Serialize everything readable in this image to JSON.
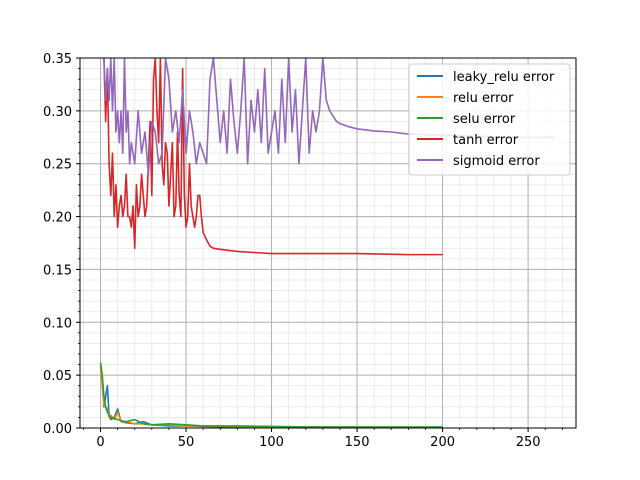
{
  "chart_data": {
    "type": "line",
    "title": "",
    "xlabel": "",
    "ylabel": "",
    "xlim": [
      -12,
      278
    ],
    "ylim": [
      0,
      0.35
    ],
    "xticks": [
      0,
      50,
      100,
      150,
      200,
      250
    ],
    "yticks": [
      0.0,
      0.05,
      0.1,
      0.15,
      0.2,
      0.25,
      0.3,
      0.35
    ],
    "xtick_labels": [
      "0",
      "50",
      "100",
      "150",
      "200",
      "250"
    ],
    "ytick_labels": [
      "0.00",
      "0.05",
      "0.10",
      "0.15",
      "0.20",
      "0.25",
      "0.30",
      "0.35"
    ],
    "grid": "major and minor",
    "legend_position": "top-right",
    "legend_entries": [
      "leaky_relu error",
      "relu error",
      "selu error",
      "tanh error",
      "sigmoid error"
    ],
    "series": [
      {
        "name": "leaky_relu error",
        "color": "#1f77b4",
        "x": [
          0,
          1,
          2,
          3,
          4,
          5,
          6,
          8,
          10,
          12,
          15,
          20,
          25,
          30,
          40,
          50,
          60,
          80,
          100,
          120,
          150,
          180,
          200
        ],
        "y": [
          0.058,
          0.045,
          0.02,
          0.03,
          0.04,
          0.012,
          0.008,
          0.01,
          0.018,
          0.006,
          0.005,
          0.004,
          0.006,
          0.003,
          0.002,
          0.002,
          0.0015,
          0.001,
          0.001,
          0.0008,
          0.0006,
          0.0005,
          0.0004
        ]
      },
      {
        "name": "relu error",
        "color": "#ff7f0e",
        "x": [
          0,
          1,
          2,
          3,
          4,
          5,
          6,
          8,
          10,
          12,
          15,
          20,
          25,
          30,
          40,
          50,
          60,
          80,
          100,
          120,
          150,
          180,
          200
        ],
        "y": [
          0.06,
          0.04,
          0.022,
          0.02,
          0.018,
          0.01,
          0.012,
          0.008,
          0.015,
          0.006,
          0.006,
          0.004,
          0.004,
          0.003,
          0.003,
          0.002,
          0.002,
          0.0015,
          0.001,
          0.001,
          0.0008,
          0.0006,
          0.0005
        ]
      },
      {
        "name": "selu error",
        "color": "#2ca02c",
        "x": [
          0,
          1,
          2,
          3,
          4,
          5,
          6,
          8,
          10,
          12,
          15,
          20,
          25,
          30,
          40,
          50,
          60,
          80,
          100,
          120,
          150,
          180,
          200
        ],
        "y": [
          0.062,
          0.05,
          0.03,
          0.02,
          0.015,
          0.012,
          0.01,
          0.009,
          0.008,
          0.007,
          0.006,
          0.008,
          0.004,
          0.003,
          0.004,
          0.003,
          0.002,
          0.002,
          0.0015,
          0.001,
          0.001,
          0.001,
          0.001
        ]
      },
      {
        "name": "tanh error",
        "color": "#d62728",
        "x": [
          2,
          3,
          4,
          5,
          6,
          7,
          8,
          9,
          10,
          11,
          12,
          13,
          14,
          15,
          16,
          17,
          18,
          19,
          20,
          21,
          22,
          23,
          24,
          25,
          26,
          27,
          28,
          29,
          30,
          31,
          32,
          33,
          34,
          35,
          36,
          37,
          38,
          39,
          40,
          41,
          42,
          43,
          44,
          45,
          46,
          47,
          48,
          49,
          50,
          51,
          52,
          53,
          54,
          55,
          56,
          57,
          58,
          59,
          60,
          62,
          64,
          66,
          70,
          75,
          80,
          90,
          100,
          120,
          150,
          180,
          200
        ],
        "y": [
          0.35,
          0.29,
          0.34,
          0.25,
          0.22,
          0.26,
          0.2,
          0.23,
          0.19,
          0.21,
          0.22,
          0.2,
          0.21,
          0.24,
          0.2,
          0.2,
          0.19,
          0.21,
          0.17,
          0.23,
          0.2,
          0.21,
          0.24,
          0.22,
          0.2,
          0.21,
          0.25,
          0.29,
          0.22,
          0.33,
          0.35,
          0.3,
          0.27,
          0.35,
          0.25,
          0.23,
          0.27,
          0.26,
          0.21,
          0.24,
          0.27,
          0.2,
          0.21,
          0.28,
          0.22,
          0.2,
          0.34,
          0.22,
          0.19,
          0.2,
          0.25,
          0.21,
          0.2,
          0.19,
          0.2,
          0.22,
          0.22,
          0.2,
          0.185,
          0.178,
          0.172,
          0.17,
          0.169,
          0.168,
          0.167,
          0.166,
          0.165,
          0.165,
          0.165,
          0.164,
          0.164
        ]
      },
      {
        "name": "sigmoid error",
        "color": "#9467bd",
        "x": [
          2,
          3,
          4,
          5,
          6,
          7,
          8,
          9,
          10,
          11,
          12,
          13,
          14,
          15,
          16,
          17,
          18,
          19,
          20,
          22,
          24,
          26,
          28,
          30,
          32,
          34,
          36,
          38,
          40,
          42,
          44,
          46,
          48,
          50,
          52,
          54,
          56,
          58,
          60,
          62,
          64,
          66,
          68,
          70,
          72,
          74,
          76,
          78,
          80,
          82,
          84,
          86,
          88,
          90,
          92,
          94,
          96,
          98,
          100,
          102,
          104,
          106,
          108,
          110,
          112,
          114,
          116,
          118,
          120,
          122,
          124,
          126,
          128,
          130,
          132,
          134,
          136,
          138,
          140,
          145,
          150,
          160,
          170,
          180,
          200,
          220,
          240,
          265
        ],
        "y": [
          0.35,
          0.31,
          0.34,
          0.31,
          0.35,
          0.3,
          0.35,
          0.28,
          0.3,
          0.27,
          0.3,
          0.26,
          0.35,
          0.28,
          0.3,
          0.25,
          0.27,
          0.26,
          0.25,
          0.3,
          0.26,
          0.28,
          0.24,
          0.29,
          0.28,
          0.25,
          0.26,
          0.35,
          0.33,
          0.28,
          0.3,
          0.27,
          0.32,
          0.26,
          0.3,
          0.28,
          0.25,
          0.27,
          0.26,
          0.25,
          0.33,
          0.35,
          0.31,
          0.27,
          0.3,
          0.26,
          0.33,
          0.29,
          0.26,
          0.3,
          0.35,
          0.25,
          0.31,
          0.28,
          0.32,
          0.27,
          0.34,
          0.26,
          0.28,
          0.3,
          0.26,
          0.33,
          0.27,
          0.35,
          0.28,
          0.32,
          0.25,
          0.3,
          0.35,
          0.26,
          0.3,
          0.28,
          0.3,
          0.35,
          0.31,
          0.3,
          0.295,
          0.29,
          0.288,
          0.285,
          0.283,
          0.281,
          0.28,
          0.278,
          0.277,
          0.276,
          0.275,
          0.275
        ]
      }
    ]
  }
}
